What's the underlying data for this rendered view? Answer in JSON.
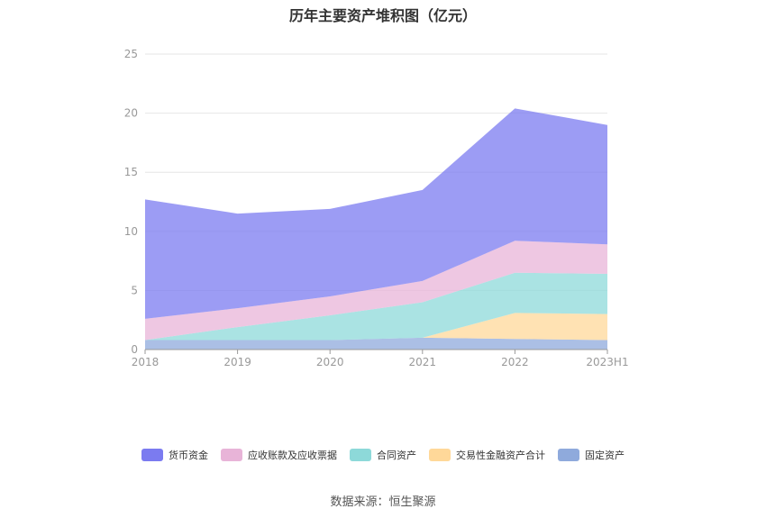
{
  "chart_data": {
    "type": "area",
    "stacked": true,
    "title": "历年主要资产堆积图（亿元）",
    "categories": [
      "2018",
      "2019",
      "2020",
      "2021",
      "2022",
      "2023H1"
    ],
    "ylim": [
      0,
      25
    ],
    "yticks": [
      "0",
      "5",
      "10",
      "15",
      "20",
      "25"
    ],
    "grid": true,
    "legend_position": "bottom",
    "series": [
      {
        "name": "固定资产",
        "values": [
          0.8,
          0.8,
          0.8,
          1.0,
          0.9,
          0.8
        ],
        "color": "#8faadc"
      },
      {
        "name": "交易性金融资产合计",
        "values": [
          0.0,
          0.0,
          0.0,
          0.0,
          2.2,
          2.2
        ],
        "color": "#ffd899"
      },
      {
        "name": "合同资产",
        "values": [
          0.0,
          1.1,
          2.1,
          3.0,
          3.4,
          3.4
        ],
        "color": "#8dd9d9"
      },
      {
        "name": "应收账款及应收票据",
        "values": [
          1.8,
          1.6,
          1.6,
          1.8,
          2.7,
          2.5
        ],
        "color": "#e8b4d8"
      },
      {
        "name": "货币资金",
        "values": [
          10.1,
          8.0,
          7.4,
          7.7,
          11.2,
          10.1
        ],
        "color": "#7b7bf0"
      }
    ],
    "legend_order": [
      "货币资金",
      "应收账款及应收票据",
      "合同资产",
      "交易性金融资产合计",
      "固定资产"
    ]
  },
  "source_text": "数据来源：恒生聚源"
}
